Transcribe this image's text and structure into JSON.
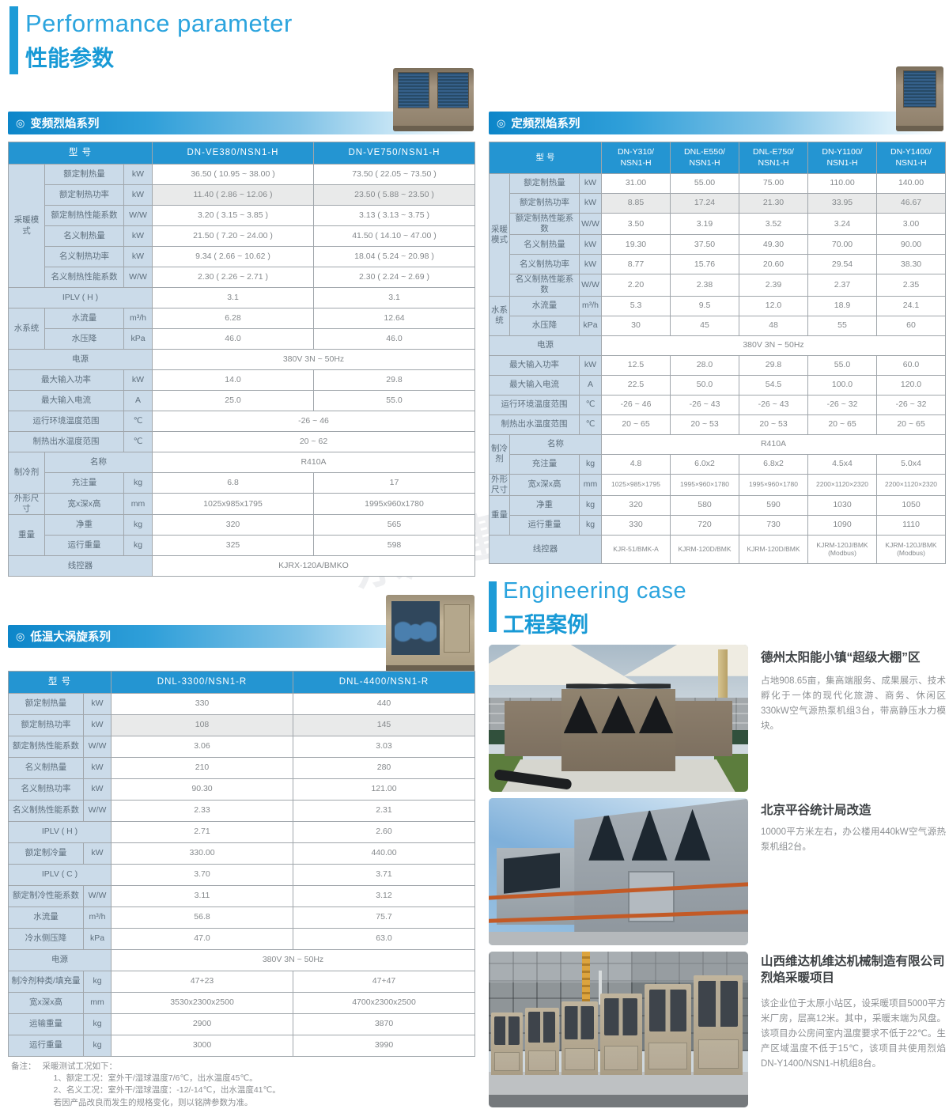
{
  "header": {
    "title_en": "Performance parameter",
    "title_zh": "性能参数"
  },
  "watermark": {
    "text": "东成建筑"
  },
  "sections": {
    "inverter": {
      "icon": "◎",
      "label": "变频烈焰系列"
    },
    "fixed": {
      "icon": "◎",
      "label": "定频烈焰系列"
    },
    "scroll": {
      "icon": "◎",
      "label": "低温大涡旋系列"
    }
  },
  "engineering": {
    "title_en": "Engineering case",
    "title_zh": "工程案例"
  },
  "tables": {
    "inverter": {
      "header": [
        {
          "t": "型  号",
          "c": 3
        },
        {
          "t": "DN-VE380/NSN1-H"
        },
        {
          "t": "DN-VE750/NSN1-H"
        }
      ],
      "rows": [
        [
          {
            "t": "采暖模式",
            "k": "g",
            "r": 6
          },
          {
            "t": "额定制热量",
            "k": "l"
          },
          {
            "t": "kW",
            "k": "u"
          },
          {
            "t": "36.50 ( 10.95 ~ 38.00 )"
          },
          {
            "t": "73.50 ( 22.05 ~ 73.50 )"
          }
        ],
        [
          {
            "t": "额定制热功率",
            "k": "l"
          },
          {
            "t": "kW",
            "k": "u"
          },
          {
            "t": "11.40 ( 2.86 ~ 12.06 )"
          },
          {
            "t": "23.50 ( 5.88 ~ 23.50 )"
          }
        ],
        [
          {
            "t": "额定制热性能系数",
            "k": "l"
          },
          {
            "t": "W/W",
            "k": "u"
          },
          {
            "t": "3.20 ( 3.15 ~ 3.85 )"
          },
          {
            "t": "3.13 ( 3.13 ~ 3.75 )"
          }
        ],
        [
          {
            "t": "名义制热量",
            "k": "l"
          },
          {
            "t": "kW",
            "k": "u"
          },
          {
            "t": "21.50 ( 7.20 ~ 24.00 )"
          },
          {
            "t": "41.50 ( 14.10 ~ 47.00 )"
          }
        ],
        [
          {
            "t": "名义制热功率",
            "k": "l"
          },
          {
            "t": "kW",
            "k": "u"
          },
          {
            "t": "9.34 ( 2.66 ~ 10.62 )"
          },
          {
            "t": "18.04 ( 5.24 ~ 20.98 )"
          }
        ],
        [
          {
            "t": "名义制热性能系数",
            "k": "l"
          },
          {
            "t": "W/W",
            "k": "u"
          },
          {
            "t": "2.30 ( 2.26 ~ 2.71 )"
          },
          {
            "t": "2.30 ( 2.24 ~ 2.69 )"
          }
        ],
        [
          {
            "t": "IPLV ( H )",
            "k": "l",
            "c": 3
          },
          {
            "t": "3.1"
          },
          {
            "t": "3.1"
          }
        ],
        [
          {
            "t": "水系统",
            "k": "g",
            "r": 2
          },
          {
            "t": "水流量",
            "k": "l"
          },
          {
            "t": "m³/h",
            "k": "u"
          },
          {
            "t": "6.28"
          },
          {
            "t": "12.64"
          }
        ],
        [
          {
            "t": "水压降",
            "k": "l"
          },
          {
            "t": "kPa",
            "k": "u"
          },
          {
            "t": "46.0"
          },
          {
            "t": "46.0"
          }
        ],
        [
          {
            "t": "电源",
            "k": "l",
            "c": 3
          },
          {
            "t": "380V  3N ~ 50Hz",
            "c": 2
          }
        ],
        [
          {
            "t": "最大输入功率",
            "k": "l",
            "c": 2
          },
          {
            "t": "kW",
            "k": "u"
          },
          {
            "t": "14.0"
          },
          {
            "t": "29.8"
          }
        ],
        [
          {
            "t": "最大输入电流",
            "k": "l",
            "c": 2
          },
          {
            "t": "A",
            "k": "u"
          },
          {
            "t": "25.0"
          },
          {
            "t": "55.0"
          }
        ],
        [
          {
            "t": "运行环境温度范围",
            "k": "l",
            "c": 2
          },
          {
            "t": "℃",
            "k": "u"
          },
          {
            "t": "-26 ~ 46",
            "c": 2
          }
        ],
        [
          {
            "t": "制热出水温度范围",
            "k": "l",
            "c": 2
          },
          {
            "t": "℃",
            "k": "u"
          },
          {
            "t": "20 ~ 62",
            "c": 2
          }
        ],
        [
          {
            "t": "制冷剂",
            "k": "g",
            "r": 2
          },
          {
            "t": "名称",
            "k": "l",
            "c": 2
          },
          {
            "t": "R410A",
            "c": 2
          }
        ],
        [
          {
            "t": "充注量",
            "k": "l"
          },
          {
            "t": "kg",
            "k": "u"
          },
          {
            "t": "6.8"
          },
          {
            "t": "17"
          }
        ],
        [
          {
            "t": "外形尺寸",
            "k": "g"
          },
          {
            "t": "宽x深x高",
            "k": "l"
          },
          {
            "t": "mm",
            "k": "u"
          },
          {
            "t": "1025x985x1795"
          },
          {
            "t": "1995x960x1780"
          }
        ],
        [
          {
            "t": "重量",
            "k": "g",
            "r": 2
          },
          {
            "t": "净重",
            "k": "l"
          },
          {
            "t": "kg",
            "k": "u"
          },
          {
            "t": "320"
          },
          {
            "t": "565"
          }
        ],
        [
          {
            "t": "运行重量",
            "k": "l"
          },
          {
            "t": "kg",
            "k": "u"
          },
          {
            "t": "325"
          },
          {
            "t": "598"
          }
        ],
        [
          {
            "t": "线控器",
            "k": "l",
            "c": 3
          },
          {
            "t": "KJRX-120A/BMKO",
            "c": 2
          }
        ]
      ]
    },
    "fixed": {
      "header": [
        {
          "t": "型  号",
          "c": 3
        },
        {
          "t": "DN-Y310/\nNSN1-H"
        },
        {
          "t": "DNL-E550/\nNSN1-H"
        },
        {
          "t": "DNL-E750/\nNSN1-H"
        },
        {
          "t": "DN-Y1100/\nNSN1-H"
        },
        {
          "t": "DN-Y1400/\nNSN1-H"
        }
      ],
      "rows": [
        [
          {
            "t": "采暖模式",
            "k": "g",
            "r": 6
          },
          {
            "t": "额定制热量",
            "k": "l"
          },
          {
            "t": "kW",
            "k": "u"
          },
          {
            "t": "31.00"
          },
          {
            "t": "55.00"
          },
          {
            "t": "75.00"
          },
          {
            "t": "110.00"
          },
          {
            "t": "140.00"
          }
        ],
        [
          {
            "t": "额定制热功率",
            "k": "l"
          },
          {
            "t": "kW",
            "k": "u"
          },
          {
            "t": "8.85"
          },
          {
            "t": "17.24"
          },
          {
            "t": "21.30"
          },
          {
            "t": "33.95"
          },
          {
            "t": "46.67"
          }
        ],
        [
          {
            "t": "额定制热性能系数",
            "k": "l"
          },
          {
            "t": "W/W",
            "k": "u"
          },
          {
            "t": "3.50"
          },
          {
            "t": "3.19"
          },
          {
            "t": "3.52"
          },
          {
            "t": "3.24"
          },
          {
            "t": "3.00"
          }
        ],
        [
          {
            "t": "名义制热量",
            "k": "l"
          },
          {
            "t": "kW",
            "k": "u"
          },
          {
            "t": "19.30"
          },
          {
            "t": "37.50"
          },
          {
            "t": "49.30"
          },
          {
            "t": "70.00"
          },
          {
            "t": "90.00"
          }
        ],
        [
          {
            "t": "名义制热功率",
            "k": "l"
          },
          {
            "t": "kW",
            "k": "u"
          },
          {
            "t": "8.77"
          },
          {
            "t": "15.76"
          },
          {
            "t": "20.60"
          },
          {
            "t": "29.54"
          },
          {
            "t": "38.30"
          }
        ],
        [
          {
            "t": "名义制热性能系数",
            "k": "l"
          },
          {
            "t": "W/W",
            "k": "u"
          },
          {
            "t": "2.20"
          },
          {
            "t": "2.38"
          },
          {
            "t": "2.39"
          },
          {
            "t": "2.37"
          },
          {
            "t": "2.35"
          }
        ],
        [
          {
            "t": "水系统",
            "k": "g",
            "r": 2
          },
          {
            "t": "水流量",
            "k": "l"
          },
          {
            "t": "m³/h",
            "k": "u"
          },
          {
            "t": "5.3"
          },
          {
            "t": "9.5"
          },
          {
            "t": "12.0"
          },
          {
            "t": "18.9"
          },
          {
            "t": "24.1"
          }
        ],
        [
          {
            "t": "水压降",
            "k": "l"
          },
          {
            "t": "kPa",
            "k": "u"
          },
          {
            "t": "30"
          },
          {
            "t": "45"
          },
          {
            "t": "48"
          },
          {
            "t": "55"
          },
          {
            "t": "60"
          }
        ],
        [
          {
            "t": "电源",
            "k": "l",
            "c": 3
          },
          {
            "t": "380V  3N ~ 50Hz",
            "c": 5
          }
        ],
        [
          {
            "t": "最大输入功率",
            "k": "l",
            "c": 2
          },
          {
            "t": "kW",
            "k": "u"
          },
          {
            "t": "12.5"
          },
          {
            "t": "28.0"
          },
          {
            "t": "29.8"
          },
          {
            "t": "55.0"
          },
          {
            "t": "60.0"
          }
        ],
        [
          {
            "t": "最大输入电流",
            "k": "l",
            "c": 2
          },
          {
            "t": "A",
            "k": "u"
          },
          {
            "t": "22.5"
          },
          {
            "t": "50.0"
          },
          {
            "t": "54.5"
          },
          {
            "t": "100.0"
          },
          {
            "t": "120.0"
          }
        ],
        [
          {
            "t": "运行环境温度范围",
            "k": "l",
            "c": 2
          },
          {
            "t": "℃",
            "k": "u"
          },
          {
            "t": "-26 ~ 46"
          },
          {
            "t": "-26 ~ 43"
          },
          {
            "t": "-26 ~ 43"
          },
          {
            "t": "-26 ~ 32"
          },
          {
            "t": "-26 ~ 32"
          }
        ],
        [
          {
            "t": "制热出水温度范围",
            "k": "l",
            "c": 2
          },
          {
            "t": "℃",
            "k": "u"
          },
          {
            "t": "20 ~ 65"
          },
          {
            "t": "20 ~ 53"
          },
          {
            "t": "20 ~ 53"
          },
          {
            "t": "20 ~ 65"
          },
          {
            "t": "20 ~ 65"
          }
        ],
        [
          {
            "t": "制冷剂",
            "k": "g",
            "r": 2
          },
          {
            "t": "名称",
            "k": "l",
            "c": 2
          },
          {
            "t": "R410A",
            "c": 5
          }
        ],
        [
          {
            "t": "充注量",
            "k": "l"
          },
          {
            "t": "kg",
            "k": "u"
          },
          {
            "t": "4.8"
          },
          {
            "t": "6.0x2"
          },
          {
            "t": "6.8x2"
          },
          {
            "t": "4.5x4"
          },
          {
            "t": "5.0x4"
          }
        ],
        [
          {
            "t": "外形尺寸",
            "k": "g"
          },
          {
            "t": "宽x深x高",
            "k": "l"
          },
          {
            "t": "mm",
            "k": "u"
          },
          {
            "t": "1025×985×1795",
            "k": "ds"
          },
          {
            "t": "1995×960×1780",
            "k": "ds"
          },
          {
            "t": "1995×960×1780",
            "k": "ds"
          },
          {
            "t": "2200×1120×2320",
            "k": "ds"
          },
          {
            "t": "2200×1120×2320",
            "k": "ds"
          }
        ],
        [
          {
            "t": "重量",
            "k": "g",
            "r": 2
          },
          {
            "t": "净重",
            "k": "l"
          },
          {
            "t": "kg",
            "k": "u"
          },
          {
            "t": "320"
          },
          {
            "t": "580"
          },
          {
            "t": "590"
          },
          {
            "t": "1030"
          },
          {
            "t": "1050"
          }
        ],
        [
          {
            "t": "运行重量",
            "k": "l"
          },
          {
            "t": "kg",
            "k": "u"
          },
          {
            "t": "330"
          },
          {
            "t": "720"
          },
          {
            "t": "730"
          },
          {
            "t": "1090"
          },
          {
            "t": "1110"
          }
        ],
        [
          {
            "t": "线控器",
            "k": "l",
            "c": 3
          },
          {
            "t": "KJR-51/BMK-A",
            "k": "ds"
          },
          {
            "t": "KJRM-120D/BMK",
            "k": "ds"
          },
          {
            "t": "KJRM-120D/BMK",
            "k": "ds"
          },
          {
            "t": "KJRM-120J/BMK\n(Modbus)",
            "k": "ds"
          },
          {
            "t": "KJRM-120J/BMK\n(Modbus)",
            "k": "ds"
          }
        ]
      ]
    },
    "scroll": {
      "header": [
        {
          "t": "型  号",
          "c": 2
        },
        {
          "t": "DNL-3300/NSN1-R"
        },
        {
          "t": "DNL-4400/NSN1-R"
        }
      ],
      "rows": [
        [
          {
            "t": "额定制热量",
            "k": "l"
          },
          {
            "t": "kW",
            "k": "u"
          },
          {
            "t": "330"
          },
          {
            "t": "440"
          }
        ],
        [
          {
            "t": "额定制热功率",
            "k": "l"
          },
          {
            "t": "kW",
            "k": "u"
          },
          {
            "t": "108"
          },
          {
            "t": "145"
          }
        ],
        [
          {
            "t": "额定制热性能系数",
            "k": "l"
          },
          {
            "t": "W/W",
            "k": "u"
          },
          {
            "t": "3.06"
          },
          {
            "t": "3.03"
          }
        ],
        [
          {
            "t": "名义制热量",
            "k": "l"
          },
          {
            "t": "kW",
            "k": "u"
          },
          {
            "t": "210"
          },
          {
            "t": "280"
          }
        ],
        [
          {
            "t": "名义制热功率",
            "k": "l"
          },
          {
            "t": "kW",
            "k": "u"
          },
          {
            "t": "90.30"
          },
          {
            "t": "121.00"
          }
        ],
        [
          {
            "t": "名义制热性能系数",
            "k": "l"
          },
          {
            "t": "W/W",
            "k": "u"
          },
          {
            "t": "2.33"
          },
          {
            "t": "2.31"
          }
        ],
        [
          {
            "t": "IPLV ( H )",
            "k": "l",
            "c": 2
          },
          {
            "t": "2.71"
          },
          {
            "t": "2.60"
          }
        ],
        [
          {
            "t": "额定制冷量",
            "k": "l"
          },
          {
            "t": "kW",
            "k": "u"
          },
          {
            "t": "330.00"
          },
          {
            "t": "440.00"
          }
        ],
        [
          {
            "t": "IPLV ( C )",
            "k": "l",
            "c": 2
          },
          {
            "t": "3.70"
          },
          {
            "t": "3.71"
          }
        ],
        [
          {
            "t": "额定制冷性能系数",
            "k": "l"
          },
          {
            "t": "W/W",
            "k": "u"
          },
          {
            "t": "3.11"
          },
          {
            "t": "3.12"
          }
        ],
        [
          {
            "t": "水流量",
            "k": "l"
          },
          {
            "t": "m³/h",
            "k": "u"
          },
          {
            "t": "56.8"
          },
          {
            "t": "75.7"
          }
        ],
        [
          {
            "t": "冷水侧压降",
            "k": "l"
          },
          {
            "t": "kPa",
            "k": "u"
          },
          {
            "t": "47.0"
          },
          {
            "t": "63.0"
          }
        ],
        [
          {
            "t": "电源",
            "k": "l",
            "c": 2
          },
          {
            "t": "380V  3N ~ 50Hz",
            "c": 2
          }
        ],
        [
          {
            "t": "制冷剂种类/填充量",
            "k": "l"
          },
          {
            "t": "kg",
            "k": "u"
          },
          {
            "t": "47+23"
          },
          {
            "t": "47+47"
          }
        ],
        [
          {
            "t": "宽x深x高",
            "k": "l"
          },
          {
            "t": "mm",
            "k": "u"
          },
          {
            "t": "3530x2300x2500"
          },
          {
            "t": "4700x2300x2500"
          }
        ],
        [
          {
            "t": "运输重量",
            "k": "l"
          },
          {
            "t": "kg",
            "k": "u"
          },
          {
            "t": "2900"
          },
          {
            "t": "3870"
          }
        ],
        [
          {
            "t": "运行重量",
            "k": "l"
          },
          {
            "t": "kg",
            "k": "u"
          },
          {
            "t": "3000"
          },
          {
            "t": "3990"
          }
        ]
      ]
    }
  },
  "cases": [
    {
      "title": "德州太阳能小镇“超级大棚”区",
      "body": "占地908.65亩，集高端服务、成果展示、技术孵化于一体的现代化旅游、商务、休闲区330kW空气源热泵机组3台，带高静压水力模块。"
    },
    {
      "title": "北京平谷统计局改造",
      "body": "10000平方米左右，办公楼用440kW空气源热泵机组2台。"
    },
    {
      "title": "山西维达机维达机械制造有限公司烈焰采暖项目",
      "body": "该企业位于太原小站区，设采暖项目5000平方米厂房，层高12米。其中，采暖末端为风盘。该项目办公房间室内温度要求不低于22℃。生产区域温度不低于15℃，该项目共使用烈焰DN-Y1400/NSN1-H机组8台。"
    }
  ],
  "notes": {
    "label": "备注：",
    "intro": "采暖测试工况如下：",
    "l1": "1、额定工况：室外干/湿球温度7/6℃，出水温度45℃。",
    "l2": "2、名义工况：室外干/湿球温度：-12/-14℃，出水温度41℃。",
    "l3": "若因产品改良而发生的规格变化，则以铭牌参数为准。"
  }
}
